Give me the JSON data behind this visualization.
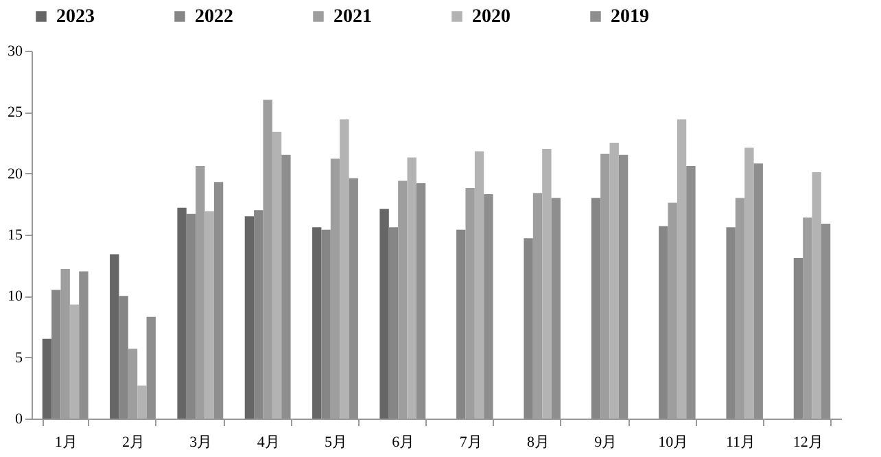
{
  "chart_data": {
    "type": "bar",
    "categories": [
      "1月",
      "2月",
      "3月",
      "4月",
      "5月",
      "6月",
      "7月",
      "8月",
      "9月",
      "10月",
      "11月",
      "12月"
    ],
    "series": [
      {
        "name": "2023",
        "color": "#666666",
        "values": [
          6.5,
          13.4,
          17.2,
          16.5,
          15.6,
          17.1,
          null,
          null,
          null,
          null,
          null,
          null
        ]
      },
      {
        "name": "2022",
        "color": "#868686",
        "values": [
          10.5,
          10.0,
          16.7,
          17.0,
          15.4,
          15.6,
          15.4,
          14.7,
          18.0,
          15.7,
          15.6,
          13.1
        ]
      },
      {
        "name": "2021",
        "color": "#9e9e9e",
        "values": [
          12.2,
          5.7,
          20.6,
          26.0,
          21.2,
          19.4,
          18.8,
          18.4,
          21.6,
          17.6,
          18.0,
          16.4
        ]
      },
      {
        "name": "2020",
        "color": "#b3b3b3",
        "values": [
          9.3,
          2.7,
          16.9,
          23.4,
          24.4,
          21.3,
          21.8,
          22.0,
          22.5,
          24.4,
          22.1,
          20.1
        ]
      },
      {
        "name": "2019",
        "color": "#8e8e8e",
        "values": [
          12.0,
          8.3,
          19.3,
          21.5,
          19.6,
          19.2,
          18.3,
          18.0,
          21.5,
          20.6,
          20.8,
          15.9
        ]
      }
    ],
    "ylim": [
      0,
      30
    ],
    "yticks": [
      0,
      5,
      10,
      15,
      20,
      25,
      30
    ],
    "grid": false,
    "legend": "top"
  }
}
